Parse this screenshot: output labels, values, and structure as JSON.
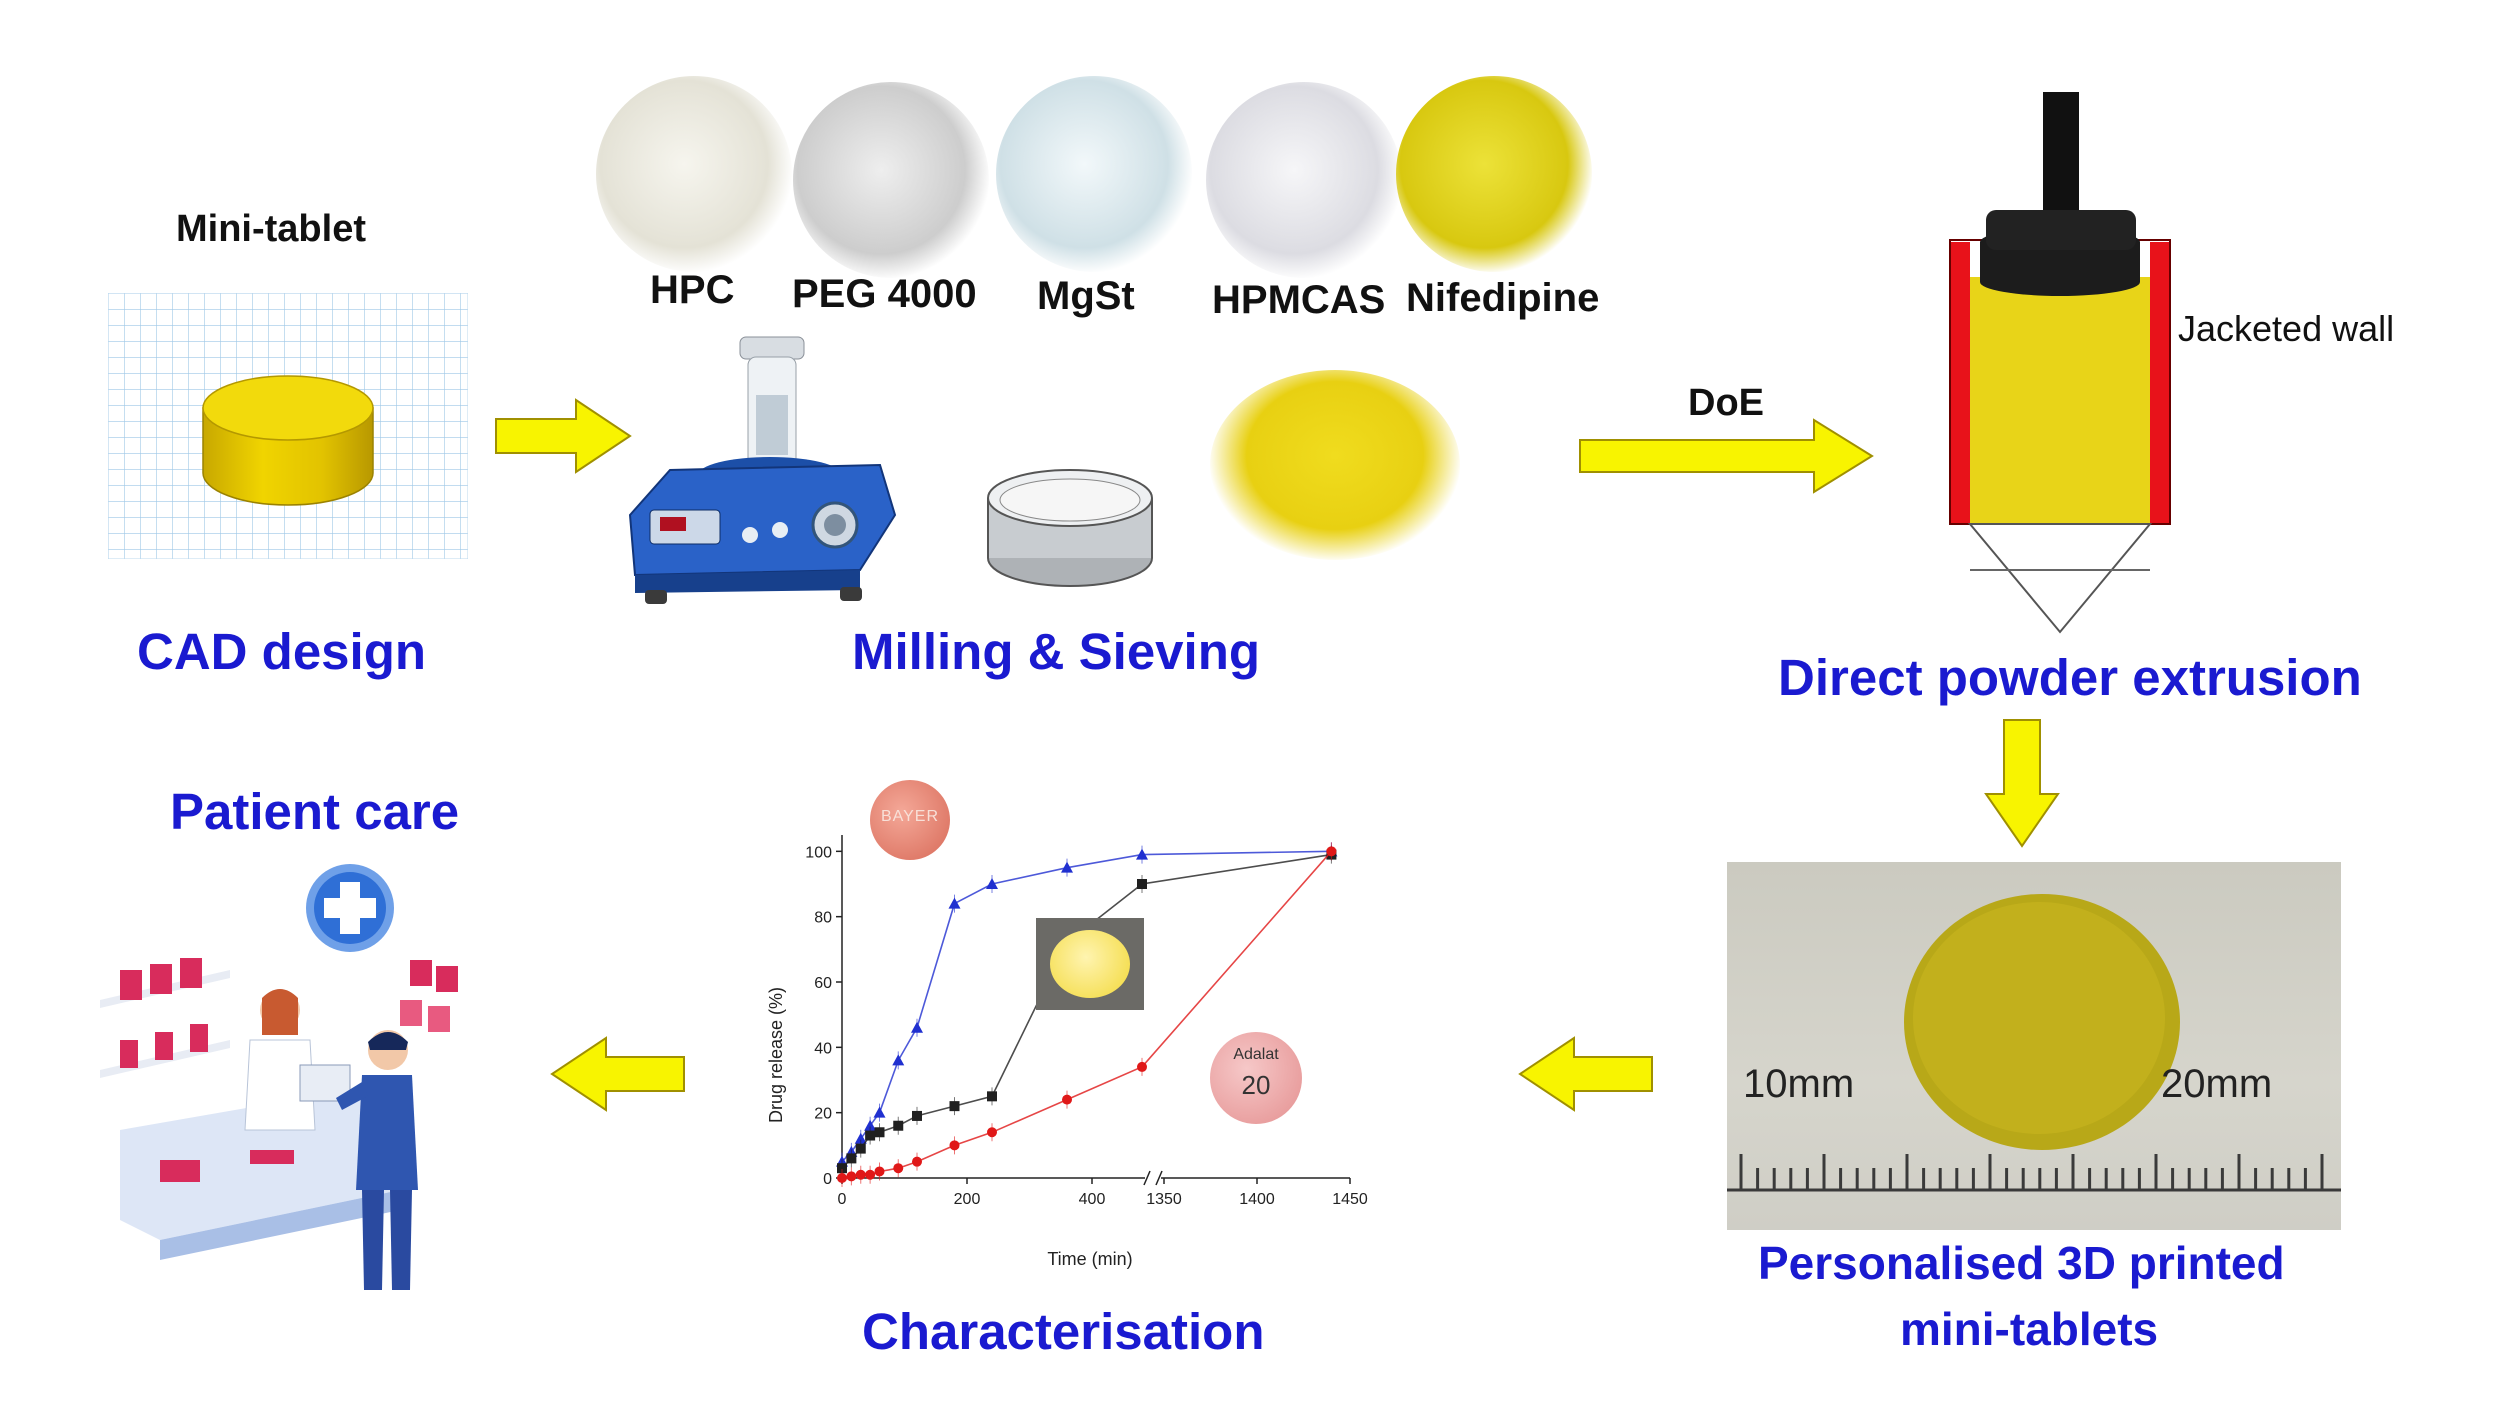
{
  "stages": {
    "cad": "CAD design",
    "milling": "Milling & Sieving",
    "extrusion": "Direct powder extrusion",
    "printed_line1": "Personalised 3D printed",
    "printed_line2": "mini-tablets",
    "characterisation": "Characterisation",
    "patient": "Patient care"
  },
  "labels": {
    "mini_tablet": "Mini-tablet",
    "doe": "DoE",
    "jacketed_wall": "Jacketed wall"
  },
  "powders": [
    {
      "name": "HPC",
      "color": "#ecebe2"
    },
    {
      "name": "PEG 4000",
      "color": "#dcdcdc"
    },
    {
      "name": "MgSt",
      "color": "#dfeaee"
    },
    {
      "name": "HPMCAS",
      "color": "#e9e9ec"
    },
    {
      "name": "Nifedipine",
      "color": "#dccd14"
    }
  ],
  "ruler": {
    "left": "10mm",
    "right": "20mm"
  },
  "tablets": {
    "bayer": "BAYER",
    "adalat_name": "Adalat",
    "adalat_dose": "20"
  },
  "colors": {
    "title_blue": "#1a1ad0",
    "arrow_yellow": "#f8f400",
    "tablet_yellow": "#e8d010",
    "jacket_red": "#e8121a"
  },
  "chart_data": {
    "type": "line",
    "xlabel": "Time (min)",
    "ylabel": "Drug release (%)",
    "xticks": [
      "0",
      "200",
      "400",
      "1350",
      "1400",
      "1450"
    ],
    "yticks": [
      "0",
      "20",
      "40",
      "60",
      "80",
      "100"
    ],
    "ylim": [
      0,
      105
    ],
    "axis_break": "between 480 and 1350 min",
    "series": [
      {
        "color": "#2030d0",
        "marker": "triangle",
        "x": [
          0,
          15,
          30,
          45,
          60,
          90,
          120,
          180,
          240,
          360,
          480,
          1440
        ],
        "y": [
          5,
          8,
          12,
          16,
          20,
          36,
          46,
          84,
          90,
          95,
          99,
          100
        ]
      },
      {
        "color": "#202020",
        "marker": "square",
        "x": [
          0,
          15,
          30,
          45,
          60,
          90,
          120,
          180,
          240,
          360,
          480,
          1440
        ],
        "y": [
          3,
          6,
          9,
          13,
          14,
          16,
          19,
          22,
          25,
          72,
          90,
          99
        ]
      },
      {
        "color": "#e01818",
        "marker": "circle",
        "x": [
          0,
          15,
          30,
          45,
          60,
          90,
          120,
          180,
          240,
          360,
          480,
          1440
        ],
        "y": [
          0,
          0.5,
          1,
          1,
          2,
          3,
          5,
          10,
          14,
          24,
          34,
          100
        ]
      }
    ]
  }
}
